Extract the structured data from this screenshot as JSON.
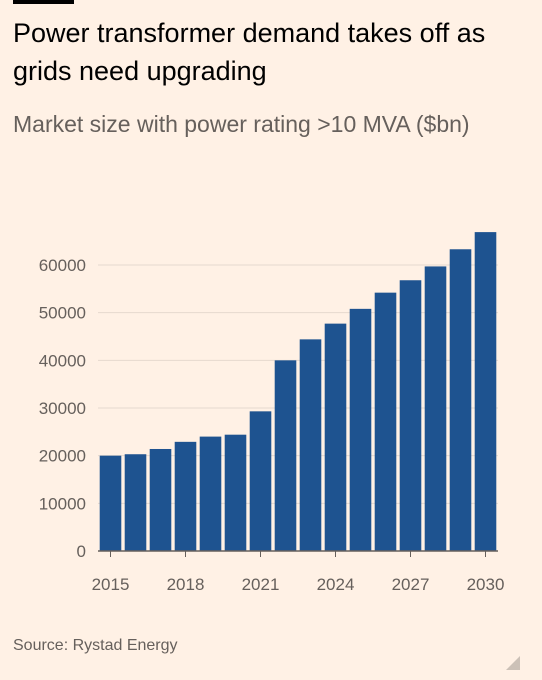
{
  "header": {
    "title": "Power transformer demand takes off as grids need upgrading",
    "subtitle": "Market size with power rating >10 MVA ($bn)"
  },
  "footer": {
    "source": "Source: Rystad Energy"
  },
  "colors": {
    "background": "#FFF1E5",
    "bar": "#1E5390",
    "grid": "#E6D9CE",
    "text": "#66605C",
    "accent_bar": "#000000"
  },
  "chart_data": {
    "type": "bar",
    "title": "Power transformer demand takes off as grids need upgrading",
    "subtitle": "Market size with power rating >10 MVA ($bn)",
    "categories": [
      "2015",
      "2016",
      "2017",
      "2018",
      "2019",
      "2020",
      "2021",
      "2022",
      "2023",
      "2024",
      "2025",
      "2026",
      "2027",
      "2028",
      "2029",
      "2030"
    ],
    "values": [
      20000,
      20300,
      21400,
      22900,
      24000,
      24400,
      29300,
      40000,
      44400,
      47700,
      50800,
      54200,
      56800,
      59700,
      63300,
      66900
    ],
    "x_tick_labels": [
      "2015",
      "2018",
      "2021",
      "2024",
      "2027",
      "2030"
    ],
    "y_ticks": [
      0,
      10000,
      20000,
      30000,
      40000,
      50000,
      60000
    ],
    "ylim": [
      0,
      70000
    ],
    "xlabel": "",
    "ylabel": "",
    "grid": true,
    "legend": "none"
  }
}
